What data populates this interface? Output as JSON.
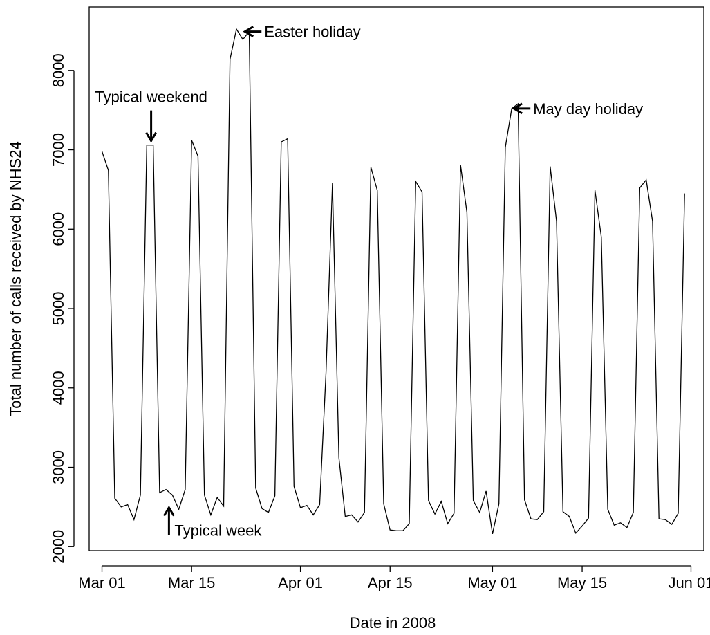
{
  "chart_data": {
    "type": "line",
    "xlabel": "Date in 2008",
    "ylabel": "Total number of calls received by NHS24",
    "x_start": "2008-03-01",
    "x_end": "2008-05-31",
    "xlim": [
      "2008-02-28",
      "2008-06-03"
    ],
    "ylim": [
      1950,
      8800
    ],
    "x_ticks": [
      {
        "date": "2008-03-01",
        "label": "Mar 01"
      },
      {
        "date": "2008-03-15",
        "label": "Mar 15"
      },
      {
        "date": "2008-04-01",
        "label": "Apr 01"
      },
      {
        "date": "2008-04-15",
        "label": "Apr 15"
      },
      {
        "date": "2008-05-01",
        "label": "May 01"
      },
      {
        "date": "2008-05-15",
        "label": "May 15"
      },
      {
        "date": "2008-06-01",
        "label": "Jun 01"
      }
    ],
    "y_ticks": [
      2000,
      3000,
      4000,
      5000,
      6000,
      7000,
      8000
    ],
    "grid": false,
    "legend": "none",
    "line_color": "#000000",
    "series": [
      {
        "values": [
          6980,
          6740,
          2610,
          2500,
          2530,
          2340,
          2650,
          7060,
          7060,
          2680,
          2720,
          2650,
          2470,
          2720,
          7120,
          6920,
          2650,
          2400,
          2620,
          2510,
          8140,
          8520,
          8390,
          8490,
          2740,
          2480,
          2430,
          2640,
          7100,
          7140,
          2760,
          2490,
          2520,
          2400,
          2530,
          4200,
          6580,
          3120,
          2380,
          2400,
          2310,
          2430,
          6780,
          6490,
          2540,
          2210,
          2200,
          2200,
          2290,
          6600,
          6470,
          2580,
          2410,
          2570,
          2290,
          2420,
          6810,
          6210,
          2580,
          2430,
          2700,
          2160,
          2540,
          7030,
          7520,
          7580,
          2590,
          2350,
          2340,
          2440,
          6790,
          6100,
          2440,
          2380,
          2170,
          2260,
          2360,
          6490,
          5900,
          2470,
          2270,
          2300,
          2240,
          2430,
          6520,
          6620,
          6100,
          2350,
          2340,
          2280,
          2420,
          6450
        ]
      }
    ],
    "annotations": [
      {
        "text": "Easter holiday",
        "date": "2008-03-23",
        "value": 8490,
        "arrow": "left"
      },
      {
        "text": "Typical weekend",
        "date": "2008-03-09",
        "value": 7060,
        "arrow": "down"
      },
      {
        "text": "May day holiday",
        "date": "2008-05-04",
        "value": 7520,
        "arrow": "left"
      },
      {
        "text": "Typical week",
        "date": "2008-03-12",
        "value": 2650,
        "arrow": "up"
      }
    ]
  }
}
